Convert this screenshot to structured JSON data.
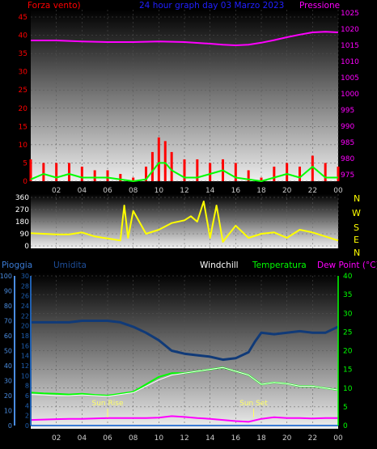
{
  "colors": {
    "wind": "#ff0000",
    "gust": "#00ff00",
    "pressure": "#ff00ff",
    "direction": "#ffff00",
    "rain": "#3a7bd5",
    "humidity": "#103a78",
    "windchill": "#ffffff",
    "temperature": "#00ff00",
    "dewpoint": "#ff00ff",
    "rain_axis": "#4a8ce0",
    "humidity_axis": "#1f5fb0",
    "temp_axis": "#00ff00",
    "sun": "#ffff66"
  },
  "labels": {
    "title": "24 hour graph day  03 Marzo 2023",
    "wind": "Forza vento)",
    "pressure": "Pressione",
    "rain": "Pioggia",
    "humidity": "Umidita",
    "windchill": "Windchill",
    "temperature": "Temperatura",
    "dewpoint": "Dew Point (°C)",
    "sunrise": "Sun Rise",
    "sunset": "Sun Set"
  },
  "compass": [
    "N",
    "W",
    "S",
    "E",
    "N"
  ],
  "x_ticks": [
    "02",
    "04",
    "06",
    "08",
    "10",
    "12",
    "14",
    "16",
    "18",
    "20",
    "22",
    "00"
  ],
  "chart_data": [
    {
      "type": "line",
      "name": "wind-pressure",
      "x_range": [
        1,
        25
      ],
      "y_left": {
        "label": "Forza vento)",
        "ticks": [
          0,
          5,
          10,
          15,
          20,
          25,
          30,
          35,
          40,
          45
        ],
        "ylim": [
          0,
          47
        ]
      },
      "y_right": {
        "label": "Pressione",
        "ticks": [
          975,
          980,
          985,
          990,
          995,
          1000,
          1005,
          1010,
          1015,
          1020,
          1025
        ],
        "ylim": [
          973,
          1026
        ]
      },
      "series": [
        {
          "key": "wind",
          "x": [
            1,
            2,
            3,
            4,
            5,
            6,
            7,
            8,
            9,
            10,
            10.5,
            11,
            11.5,
            12,
            13,
            14,
            15,
            16,
            17,
            18,
            19,
            20,
            21,
            22,
            23,
            24,
            25
          ],
          "values": [
            6,
            5,
            5,
            5,
            4,
            3,
            3,
            2,
            1,
            4,
            8,
            12,
            11,
            8,
            6,
            6,
            5,
            6,
            5,
            3,
            1,
            4,
            5,
            4,
            7,
            5,
            4
          ]
        },
        {
          "key": "gust",
          "x": [
            1,
            2,
            3,
            4,
            5,
            6,
            7,
            8,
            9,
            10,
            11,
            11.5,
            12,
            13,
            14,
            15,
            16,
            17,
            18,
            19,
            20,
            21,
            22,
            23,
            24,
            25
          ],
          "values": [
            0.5,
            2,
            1,
            2,
            1,
            1,
            1,
            0.5,
            0,
            0.5,
            5,
            5,
            3,
            1,
            1,
            2,
            3,
            1,
            0.5,
            0,
            1,
            2,
            1,
            4,
            1,
            1
          ]
        },
        {
          "key": "pressure",
          "x": [
            1,
            3,
            5,
            7,
            9,
            11,
            13,
            15,
            16,
            17,
            18,
            19,
            20,
            21,
            22,
            23,
            24,
            25
          ],
          "values": [
            1016.5,
            1016.5,
            1016.2,
            1016.0,
            1016.0,
            1016.2,
            1016.0,
            1015.5,
            1015.2,
            1015.0,
            1015.2,
            1015.8,
            1016.6,
            1017.5,
            1018.3,
            1019.0,
            1019.2,
            1019.0
          ]
        }
      ]
    },
    {
      "type": "line",
      "name": "wind-direction",
      "x_range": [
        1,
        25
      ],
      "y_left": {
        "ticks": [
          0,
          90,
          180,
          270,
          360
        ],
        "ylim": [
          0,
          360
        ]
      },
      "series": [
        {
          "key": "direction",
          "x": [
            1,
            2,
            3,
            4,
            5,
            6,
            7,
            8,
            8.3,
            8.6,
            9,
            10,
            11,
            12,
            13,
            13.5,
            14,
            14.5,
            15,
            15.5,
            16,
            17,
            18,
            19,
            20,
            21,
            22,
            23,
            24,
            25
          ],
          "values": [
            95,
            90,
            85,
            85,
            100,
            70,
            55,
            40,
            300,
            60,
            260,
            90,
            120,
            170,
            190,
            220,
            180,
            330,
            60,
            300,
            30,
            150,
            60,
            90,
            100,
            60,
            120,
            100,
            70,
            40
          ]
        }
      ]
    },
    {
      "type": "line",
      "name": "temperature-humidity",
      "x_range": [
        1,
        25
      ],
      "y_rain": {
        "label": "Pioggia",
        "ticks": [
          0,
          10,
          20,
          30,
          40,
          50,
          60,
          70,
          80,
          90,
          100
        ],
        "ylim": [
          0,
          100
        ]
      },
      "y_humidity": {
        "label": "Umidita",
        "ticks": [
          0,
          2,
          4,
          6,
          8,
          10,
          12,
          14,
          16,
          18,
          20,
          22,
          24,
          26,
          28,
          30
        ],
        "ylim": [
          0,
          30
        ]
      },
      "y_temp": {
        "label": "Temperatura",
        "ticks": [
          0,
          5,
          10,
          15,
          20,
          25,
          30,
          35,
          40
        ],
        "ylim": [
          0,
          40
        ]
      },
      "sunrise_hour": 7.0,
      "sunset_hour": 18.4,
      "series": [
        {
          "key": "humidity",
          "x": [
            1,
            2,
            3,
            4,
            5,
            6,
            7,
            8,
            9,
            10,
            11,
            12,
            13,
            14,
            15,
            16,
            17,
            18,
            18.5,
            19,
            20,
            21,
            22,
            23,
            24,
            25
          ],
          "values": [
            69,
            69,
            69,
            69,
            70,
            70,
            70,
            69,
            66,
            62,
            57,
            50,
            48,
            47,
            46,
            44,
            45,
            49,
            56,
            62,
            61,
            62,
            63,
            62,
            62,
            66
          ]
        },
        {
          "key": "temperature",
          "x": [
            1,
            2,
            3,
            4,
            5,
            6,
            7,
            8,
            9,
            10,
            11,
            12,
            13,
            14,
            15,
            16,
            17,
            18,
            19,
            20,
            21,
            22,
            23,
            24,
            25
          ],
          "values": [
            8.8,
            8.6,
            8.5,
            8.3,
            8.5,
            8.2,
            8.0,
            8.5,
            9.0,
            11.0,
            13.0,
            14.0,
            14.0,
            14.5,
            15.0,
            15.5,
            14.5,
            13.5,
            11.0,
            11.5,
            11.2,
            10.5,
            10.5,
            10.0,
            9.5
          ]
        },
        {
          "key": "windchill",
          "x": [
            1,
            2,
            3,
            4,
            5,
            6,
            7,
            8,
            9,
            10,
            11,
            12,
            13,
            14,
            15,
            16,
            17,
            18,
            19,
            20,
            21,
            22,
            23,
            24,
            25
          ],
          "values": [
            8.3,
            8.2,
            8.0,
            8.0,
            8.2,
            8.0,
            7.8,
            8.3,
            8.8,
            10.5,
            12.2,
            13.5,
            14.0,
            14.5,
            15.0,
            15.5,
            14.5,
            13.5,
            11.0,
            11.5,
            11.2,
            10.5,
            10.5,
            10.0,
            9.5
          ]
        },
        {
          "key": "dewpoint",
          "x": [
            1,
            2,
            3,
            4,
            5,
            6,
            7,
            8,
            9,
            10,
            11,
            12,
            13,
            14,
            15,
            16,
            17,
            18,
            19,
            20,
            21,
            22,
            23,
            24,
            25
          ],
          "values": [
            1.5,
            1.6,
            1.7,
            1.8,
            1.8,
            1.9,
            2.0,
            2.0,
            2.0,
            2.0,
            2.1,
            2.5,
            2.3,
            2.0,
            1.8,
            1.5,
            1.2,
            1.0,
            1.8,
            2.2,
            2.0,
            2.0,
            1.9,
            2.0,
            2.0
          ]
        },
        {
          "key": "rain",
          "x": [
            1,
            25
          ],
          "values": [
            0,
            0
          ]
        }
      ]
    }
  ]
}
